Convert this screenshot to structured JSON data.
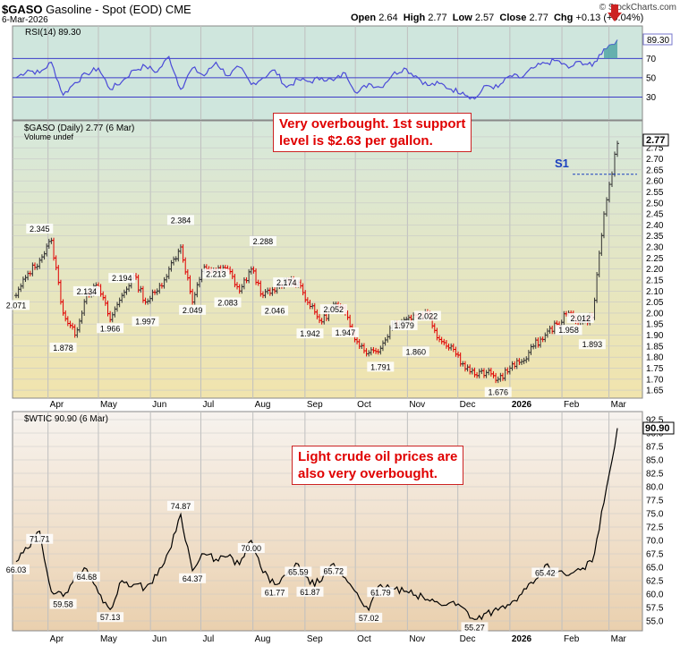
{
  "header": {
    "symbol": "$GASO",
    "name": "Gasoline - Spot (EOD)",
    "exchange": "CME",
    "date": "6-Mar-2026",
    "open_label": "Open",
    "open": "2.64",
    "high_label": "High",
    "high": "2.77",
    "low_label": "Low",
    "low": "2.57",
    "close_label": "Close",
    "close": "2.77",
    "chg_label": "Chg",
    "chg": "+0.13 (+5.04%)",
    "brand": "© StockCharts.com",
    "brand_arrow_color": "#cc2222"
  },
  "colors": {
    "rsi_bg": "#cfe6dd",
    "price_bg_top": "#d6e8dc",
    "price_bg_bottom": "#f1e4ad",
    "wti_bg_top": "#f7f3ef",
    "wti_bg_bottom": "#ead0ae",
    "rsi_line": "#4a4ad8",
    "up_bar": "#333333",
    "down_bar": "#e00000",
    "annotation_text": "#e00000",
    "s1_color": "#1a3fbf"
  },
  "annotations": {
    "gas_note_line1": "Very overbought.  1st support",
    "gas_note_line2": "level is $2.63 per gallon.",
    "oil_note_line1": "Light crude oil prices are",
    "oil_note_line2": "also very overbought.",
    "s1_label": "S1"
  },
  "chart_data": [
    {
      "panel": "rsi",
      "type": "line",
      "label": "RSI(14) 89.30",
      "current_value": "89.30",
      "ylim": [
        10,
        100
      ],
      "y_ticks": [
        "70",
        "50",
        "30"
      ],
      "reference_lines": [
        70,
        50,
        30
      ],
      "x": [
        "2025-03-13",
        "2025-03-20",
        "2025-03-27",
        "2025-04-03",
        "2025-04-10",
        "2025-04-17",
        "2025-04-24",
        "2025-05-01",
        "2025-05-08",
        "2025-05-15",
        "2025-05-22",
        "2025-05-29",
        "2025-06-05",
        "2025-06-12",
        "2025-06-19",
        "2025-06-26",
        "2025-07-03",
        "2025-07-10",
        "2025-07-17",
        "2025-07-24",
        "2025-07-31",
        "2025-08-07",
        "2025-08-14",
        "2025-08-21",
        "2025-08-28",
        "2025-09-04",
        "2025-09-11",
        "2025-09-18",
        "2025-09-25",
        "2025-10-02",
        "2025-10-09",
        "2025-10-16",
        "2025-10-23",
        "2025-10-30",
        "2025-11-06",
        "2025-11-13",
        "2025-11-20",
        "2025-11-27",
        "2025-12-04",
        "2025-12-11",
        "2025-12-18",
        "2025-12-25",
        "2026-01-01",
        "2026-01-08",
        "2026-01-15",
        "2026-01-22",
        "2026-01-29",
        "2026-02-05",
        "2026-02-12",
        "2026-02-19",
        "2026-02-26",
        "2026-03-06"
      ],
      "values": [
        50,
        58,
        55,
        66,
        32,
        45,
        54,
        60,
        38,
        46,
        58,
        62,
        56,
        72,
        38,
        60,
        52,
        66,
        52,
        61,
        43,
        50,
        58,
        40,
        48,
        46,
        50,
        47,
        55,
        34,
        44,
        40,
        53,
        60,
        52,
        42,
        44,
        38,
        35,
        28,
        42,
        40,
        52,
        50,
        60,
        65,
        68,
        60,
        67,
        62,
        80,
        89.3
      ]
    },
    {
      "panel": "gasoline",
      "type": "ohlc",
      "label": "$GASO (Daily) 2.77 (6 Mar)",
      "volume_label": "Volume undef",
      "current_value": "2.77",
      "ylim": [
        1.63,
        2.82
      ],
      "y_ticks": [
        "2.80",
        "2.75",
        "2.70",
        "2.65",
        "2.60",
        "2.55",
        "2.50",
        "2.45",
        "2.40",
        "2.35",
        "2.30",
        "2.25",
        "2.20",
        "2.15",
        "2.10",
        "2.05",
        "2.00",
        "1.95",
        "1.90",
        "1.85",
        "1.80",
        "1.75",
        "1.70",
        "1.65"
      ],
      "support_level": 2.63,
      "x": [
        "2025-03-13",
        "2025-03-20",
        "2025-03-27",
        "2025-04-03",
        "2025-04-10",
        "2025-04-17",
        "2025-04-24",
        "2025-05-01",
        "2025-05-08",
        "2025-05-15",
        "2025-05-22",
        "2025-05-29",
        "2025-06-05",
        "2025-06-12",
        "2025-06-19",
        "2025-06-26",
        "2025-07-03",
        "2025-07-10",
        "2025-07-17",
        "2025-07-24",
        "2025-07-31",
        "2025-08-07",
        "2025-08-14",
        "2025-08-21",
        "2025-08-28",
        "2025-09-04",
        "2025-09-11",
        "2025-09-18",
        "2025-09-25",
        "2025-10-02",
        "2025-10-09",
        "2025-10-16",
        "2025-10-23",
        "2025-10-30",
        "2025-11-06",
        "2025-11-13",
        "2025-11-20",
        "2025-11-27",
        "2025-12-04",
        "2025-12-11",
        "2025-12-18",
        "2025-12-25",
        "2026-01-01",
        "2026-01-08",
        "2026-01-15",
        "2026-01-22",
        "2026-01-29",
        "2026-02-05",
        "2026-02-12",
        "2026-02-19",
        "2026-02-26",
        "2026-03-06"
      ],
      "values": [
        2.08,
        2.18,
        2.24,
        2.33,
        2.0,
        1.9,
        2.09,
        2.12,
        1.97,
        2.08,
        2.17,
        2.05,
        2.1,
        2.2,
        2.3,
        2.05,
        2.21,
        2.19,
        2.2,
        2.1,
        2.2,
        2.08,
        2.1,
        2.15,
        2.14,
        2.03,
        1.96,
        2.04,
        2.0,
        1.87,
        1.82,
        1.84,
        1.95,
        1.97,
        1.99,
        2.0,
        1.88,
        1.85,
        1.77,
        1.72,
        1.73,
        1.7,
        1.75,
        1.78,
        1.85,
        1.9,
        1.95,
        2.0,
        1.96,
        1.98,
        2.45,
        2.77
      ],
      "point_labels": [
        {
          "x": "2025-03-13",
          "value": "2.071"
        },
        {
          "x": "2025-03-27",
          "value": "2.345"
        },
        {
          "x": "2025-04-10",
          "value": "1.878"
        },
        {
          "x": "2025-04-24",
          "value": "2.134"
        },
        {
          "x": "2025-05-08",
          "value": "1.966"
        },
        {
          "x": "2025-05-15",
          "value": "2.194"
        },
        {
          "x": "2025-05-29",
          "value": "1.997"
        },
        {
          "x": "2025-06-19",
          "value": "2.384"
        },
        {
          "x": "2025-06-26",
          "value": "2.049"
        },
        {
          "x": "2025-07-10",
          "value": "2.213"
        },
        {
          "x": "2025-07-17",
          "value": "2.083"
        },
        {
          "x": "2025-08-07",
          "value": "2.288"
        },
        {
          "x": "2025-08-14",
          "value": "2.046"
        },
        {
          "x": "2025-08-21",
          "value": "2.174"
        },
        {
          "x": "2025-09-04",
          "value": "1.942"
        },
        {
          "x": "2025-09-18",
          "value": "2.052"
        },
        {
          "x": "2025-09-25",
          "value": "1.947"
        },
        {
          "x": "2025-10-16",
          "value": "1.791"
        },
        {
          "x": "2025-10-30",
          "value": "1.979"
        },
        {
          "x": "2025-11-06",
          "value": "1.860"
        },
        {
          "x": "2025-11-13",
          "value": "2.022"
        },
        {
          "x": "2025-12-25",
          "value": "1.676"
        },
        {
          "x": "2026-02-05",
          "value": "1.958"
        },
        {
          "x": "2026-02-12",
          "value": "2.012"
        },
        {
          "x": "2026-02-19",
          "value": "1.893"
        }
      ]
    },
    {
      "panel": "wti",
      "type": "line",
      "label": "$WTIC 90.90 (6 Mar)",
      "current_value": "90.90",
      "ylim": [
        54.0,
        93.0
      ],
      "y_ticks": [
        "92.5",
        "90.0",
        "87.5",
        "85.0",
        "82.5",
        "80.0",
        "77.5",
        "75.0",
        "72.5",
        "70.0",
        "67.5",
        "65.0",
        "62.5",
        "60.0",
        "57.5",
        "55.0"
      ],
      "x": [
        "2025-03-13",
        "2025-03-20",
        "2025-03-27",
        "2025-04-03",
        "2025-04-10",
        "2025-04-17",
        "2025-04-24",
        "2025-05-01",
        "2025-05-08",
        "2025-05-15",
        "2025-05-22",
        "2025-05-29",
        "2025-06-05",
        "2025-06-12",
        "2025-06-19",
        "2025-06-26",
        "2025-07-03",
        "2025-07-10",
        "2025-07-17",
        "2025-07-24",
        "2025-07-31",
        "2025-08-07",
        "2025-08-14",
        "2025-08-21",
        "2025-08-28",
        "2025-09-04",
        "2025-09-11",
        "2025-09-18",
        "2025-09-25",
        "2025-10-02",
        "2025-10-09",
        "2025-10-16",
        "2025-10-23",
        "2025-10-30",
        "2025-11-06",
        "2025-11-13",
        "2025-11-20",
        "2025-11-27",
        "2025-12-04",
        "2025-12-11",
        "2025-12-18",
        "2025-12-25",
        "2026-01-01",
        "2026-01-08",
        "2026-01-15",
        "2026-01-22",
        "2026-01-29",
        "2026-02-05",
        "2026-02-12",
        "2026-02-19",
        "2026-02-26",
        "2026-03-06"
      ],
      "values": [
        66.03,
        68.5,
        71.71,
        60.5,
        59.58,
        63.2,
        64.68,
        60.2,
        57.13,
        62.5,
        61.8,
        61.2,
        63.5,
        68.0,
        74.87,
        64.37,
        67.5,
        66.5,
        67.0,
        65.5,
        70.0,
        64.0,
        61.77,
        63.5,
        65.59,
        61.87,
        62.5,
        65.72,
        63.0,
        60.2,
        57.02,
        61.79,
        61.0,
        60.5,
        59.8,
        59.0,
        58.2,
        58.5,
        57.5,
        55.27,
        56.5,
        57.0,
        58.0,
        60.0,
        62.0,
        65.42,
        64.0,
        63.5,
        64.5,
        66.0,
        77.0,
        90.9
      ],
      "point_labels": [
        {
          "x": "2025-03-13",
          "value": "66.03"
        },
        {
          "x": "2025-03-27",
          "value": "71.71"
        },
        {
          "x": "2025-04-10",
          "value": "59.58"
        },
        {
          "x": "2025-04-24",
          "value": "64.68"
        },
        {
          "x": "2025-05-08",
          "value": "57.13"
        },
        {
          "x": "2025-06-19",
          "value": "74.87"
        },
        {
          "x": "2025-06-26",
          "value": "64.37"
        },
        {
          "x": "2025-07-31",
          "value": "70.00"
        },
        {
          "x": "2025-08-14",
          "value": "61.77"
        },
        {
          "x": "2025-08-28",
          "value": "65.59"
        },
        {
          "x": "2025-09-04",
          "value": "61.87"
        },
        {
          "x": "2025-09-18",
          "value": "65.72"
        },
        {
          "x": "2025-10-09",
          "value": "57.02"
        },
        {
          "x": "2025-10-16",
          "value": "61.79"
        },
        {
          "x": "2025-12-11",
          "value": "55.27"
        },
        {
          "x": "2026-01-22",
          "value": "65.42"
        }
      ]
    }
  ],
  "x_axis": {
    "month_labels": [
      {
        "x": "2025-04-01",
        "label": "Apr",
        "bold": false
      },
      {
        "x": "2025-05-01",
        "label": "May",
        "bold": false
      },
      {
        "x": "2025-06-01",
        "label": "Jun",
        "bold": false
      },
      {
        "x": "2025-07-01",
        "label": "Jul",
        "bold": false
      },
      {
        "x": "2025-08-01",
        "label": "Aug",
        "bold": false
      },
      {
        "x": "2025-09-01",
        "label": "Sep",
        "bold": false
      },
      {
        "x": "2025-10-01",
        "label": "Oct",
        "bold": false
      },
      {
        "x": "2025-11-01",
        "label": "Nov",
        "bold": false
      },
      {
        "x": "2025-12-01",
        "label": "Dec",
        "bold": false
      },
      {
        "x": "2026-01-01",
        "label": "2026",
        "bold": true
      },
      {
        "x": "2026-02-01",
        "label": "Feb",
        "bold": false
      },
      {
        "x": "2026-03-01",
        "label": "Mar",
        "bold": false
      }
    ]
  }
}
